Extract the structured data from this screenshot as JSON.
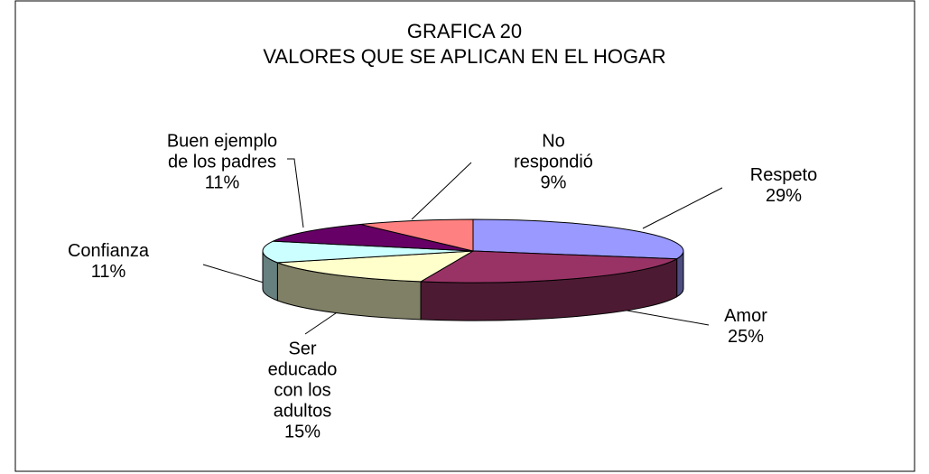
{
  "chart_data": {
    "type": "pie",
    "title": "GRAFICA 20",
    "subtitle": "VALORES QUE SE APLICAN EN EL HOGAR",
    "categories": [
      "Respeto",
      "Amor",
      "Ser educado con los adultos",
      "Confianza",
      "Buen ejemplo de los padres",
      "No respondió"
    ],
    "values": [
      29,
      25,
      15,
      11,
      11,
      9
    ],
    "value_labels": [
      "29%",
      "25%",
      "15%",
      "11%",
      "11%",
      "9%"
    ],
    "colors": [
      "#9999ff",
      "#993366",
      "#ffffcc",
      "#ccffff",
      "#660066",
      "#ff8080"
    ]
  }
}
